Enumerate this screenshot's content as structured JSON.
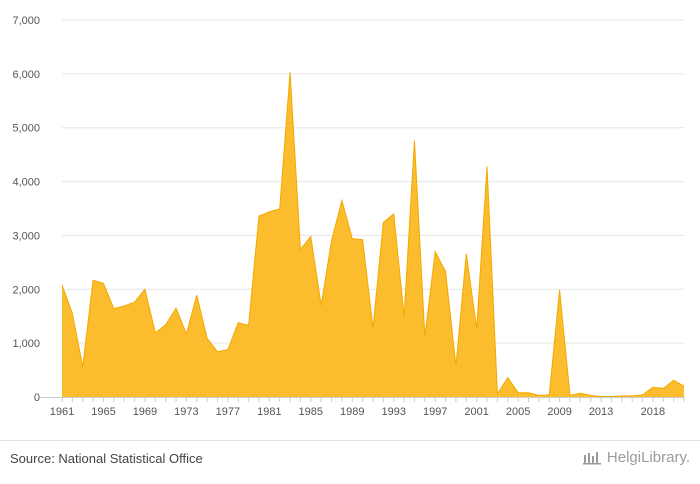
{
  "chart_data": {
    "type": "area",
    "color": "#fbbd2d",
    "stroke_color": "#f2a900",
    "ylim": [
      0,
      7000
    ],
    "y_ticks": [
      0,
      1000,
      2000,
      3000,
      4000,
      5000,
      6000,
      7000
    ],
    "y_tick_labels": [
      "0",
      "1,000",
      "2,000",
      "3,000",
      "4,000",
      "5,000",
      "6,000",
      "7,000"
    ],
    "x_tick_labels": [
      "1961",
      "1965",
      "1969",
      "1973",
      "1977",
      "1981",
      "1985",
      "1989",
      "1993",
      "1997",
      "2001",
      "2005",
      "2009",
      "2013",
      "2018"
    ],
    "x": [
      1961,
      1962,
      1963,
      1964,
      1965,
      1966,
      1967,
      1968,
      1969,
      1970,
      1971,
      1972,
      1973,
      1974,
      1975,
      1976,
      1977,
      1978,
      1979,
      1980,
      1981,
      1982,
      1983,
      1984,
      1985,
      1986,
      1987,
      1988,
      1989,
      1990,
      1991,
      1992,
      1993,
      1994,
      1995,
      1996,
      1997,
      1998,
      1999,
      2000,
      2001,
      2002,
      2003,
      2004,
      2005,
      2006,
      2007,
      2008,
      2009,
      2010,
      2011,
      2012,
      2013,
      2014,
      2015,
      2016,
      2017,
      2018,
      2019,
      2020,
      2021
    ],
    "values": [
      2080,
      1550,
      560,
      2170,
      2110,
      1640,
      1690,
      1760,
      2000,
      1190,
      1340,
      1650,
      1170,
      1890,
      1090,
      840,
      880,
      1380,
      1330,
      3360,
      3440,
      3490,
      6030,
      2740,
      2980,
      1700,
      2900,
      3650,
      2940,
      2920,
      1280,
      3240,
      3400,
      1500,
      4760,
      1120,
      2700,
      2330,
      580,
      2660,
      1270,
      4280,
      60,
      360,
      80,
      80,
      30,
      40,
      1990,
      30,
      70,
      30,
      10,
      10,
      20,
      20,
      40,
      180,
      160,
      310,
      200
    ]
  },
  "footer": {
    "source": "Source: National Statistical Office",
    "brand": "HelgiLibrary."
  }
}
